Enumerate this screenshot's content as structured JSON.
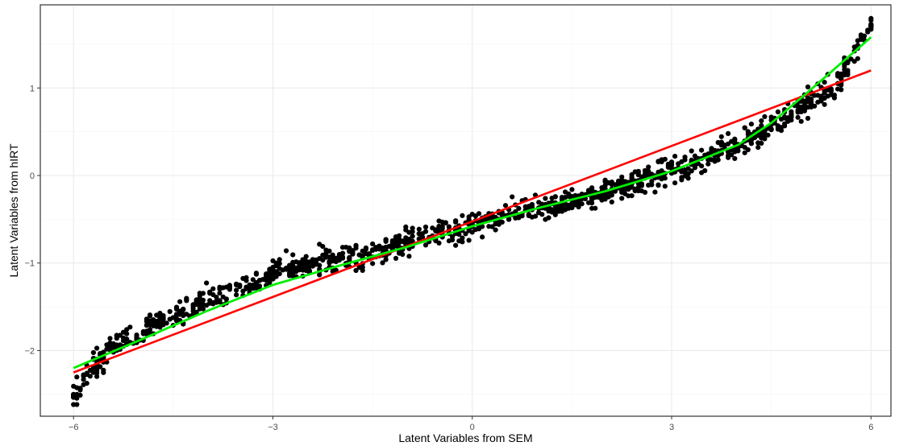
{
  "chart_data": {
    "type": "scatter",
    "xlabel": "Latent Variables from SEM",
    "ylabel": "Latent Variables from hIRT",
    "xlim": [
      -6.5,
      6.3
    ],
    "ylim": [
      -2.75,
      1.95
    ],
    "x_ticks": [
      -6,
      -3,
      0,
      3,
      6
    ],
    "x_tick_labels": [
      "−6",
      "−3",
      "0",
      "3",
      "6"
    ],
    "y_ticks": [
      -2,
      -1,
      0,
      1
    ],
    "y_tick_labels": [
      "−2",
      "−1",
      "0",
      "1"
    ],
    "grid": true,
    "legend": "none",
    "colors": {
      "points": "#000000",
      "linear_fit": "#ff0000",
      "smooth_fit": "#00ee00",
      "grid_major": "#ebebeb",
      "grid_minor": "#f5f5f5",
      "panel_border": "#333333"
    },
    "series": [
      {
        "type": "scatter",
        "approx_points": 1200,
        "x": [
          -6,
          -5.6,
          -5.4,
          -5.2,
          -5,
          -4.8,
          -4.5,
          -4.2,
          -4,
          -3.8,
          -3.5,
          -3.2,
          -3,
          -2.8,
          -2.5,
          -2.2,
          -2,
          -1.5,
          -1.2,
          -1,
          -0.5,
          0,
          0.5,
          1,
          1.5,
          2,
          2.5,
          3,
          3.5,
          4,
          4.5,
          5,
          5.5,
          6
        ],
        "y_center": [
          -2.52,
          -2.1,
          -1.95,
          -1.85,
          -1.78,
          -1.68,
          -1.6,
          -1.5,
          -1.42,
          -1.36,
          -1.28,
          -1.2,
          -1.12,
          -1.08,
          -1.02,
          -0.98,
          -0.95,
          -0.88,
          -0.82,
          -0.78,
          -0.66,
          -0.56,
          -0.45,
          -0.38,
          -0.3,
          -0.2,
          -0.08,
          0.08,
          0.2,
          0.35,
          0.55,
          0.8,
          1.05,
          1.7
        ]
      },
      {
        "type": "line",
        "fit": "linear",
        "x": [
          -6,
          6
        ],
        "y": [
          -2.25,
          1.2
        ]
      },
      {
        "type": "line",
        "fit": "smooth",
        "x": [
          -6,
          -5,
          -4,
          -3,
          -2,
          -1,
          0,
          1,
          2,
          3,
          4,
          4.5,
          5,
          5.5,
          6
        ],
        "y": [
          -2.2,
          -1.88,
          -1.55,
          -1.25,
          -1.03,
          -0.82,
          -0.58,
          -0.37,
          -0.18,
          0.05,
          0.35,
          0.6,
          0.92,
          1.25,
          1.58
        ]
      }
    ]
  }
}
